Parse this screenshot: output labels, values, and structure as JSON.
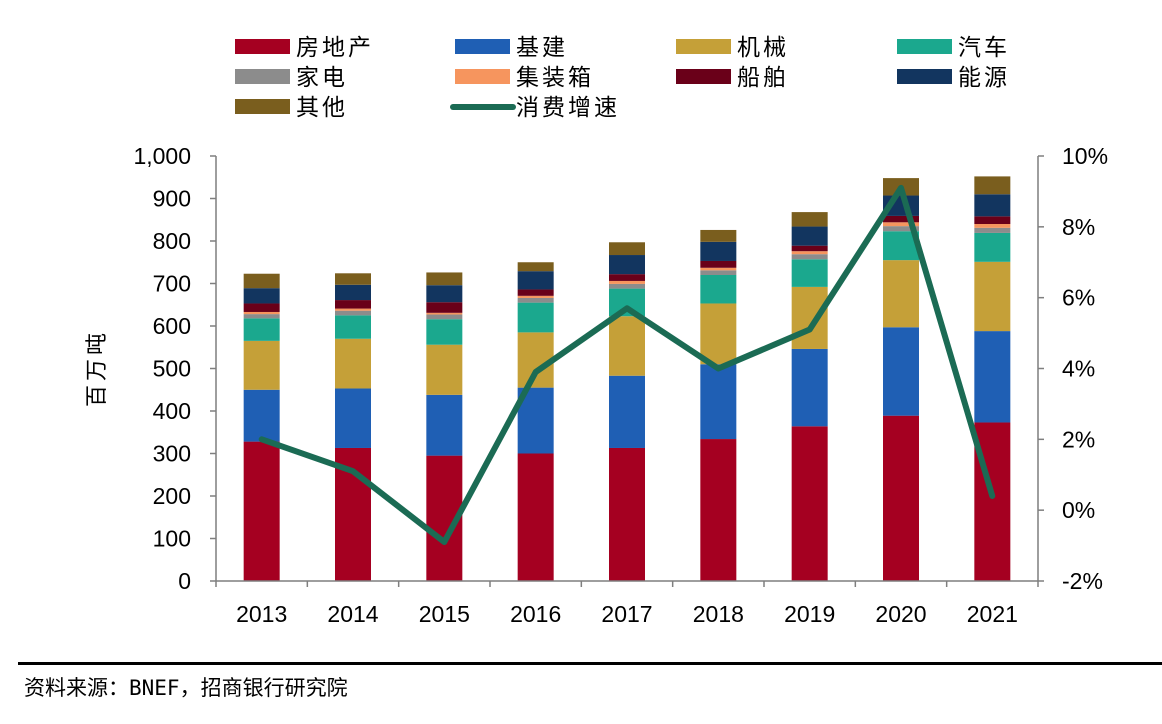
{
  "chart_data": {
    "type": "bar",
    "stacked": true,
    "categories": [
      "2013",
      "2014",
      "2015",
      "2016",
      "2017",
      "2018",
      "2019",
      "2020",
      "2021"
    ],
    "ylabel": "百万吨",
    "ylim": [
      0,
      1000
    ],
    "y_ticks": [
      "0",
      "100",
      "200",
      "300",
      "400",
      "500",
      "600",
      "700",
      "800",
      "900",
      "1,000"
    ],
    "y2lim": [
      -2,
      10
    ],
    "y2_ticks": [
      "-2%",
      "0%",
      "2%",
      "4%",
      "6%",
      "8%",
      "10%"
    ],
    "grid": false,
    "legend_position": "top",
    "series": [
      {
        "name": "房地产",
        "color": "#A50021",
        "values": [
          328,
          313,
          295,
          300,
          313,
          334,
          364,
          389,
          373
        ]
      },
      {
        "name": "基建",
        "color": "#1F5FB4",
        "values": [
          122,
          140,
          143,
          155,
          170,
          176,
          182,
          208,
          215
        ]
      },
      {
        "name": "机械",
        "color": "#C5A038",
        "values": [
          115,
          117,
          118,
          130,
          140,
          143,
          146,
          158,
          163
        ]
      },
      {
        "name": "汽车",
        "color": "#1BA88E",
        "values": [
          53,
          55,
          60,
          70,
          65,
          67,
          65,
          68,
          68
        ]
      },
      {
        "name": "家电",
        "color": "#8C8C8C",
        "values": [
          10,
          11,
          11,
          11,
          11,
          11,
          12,
          12,
          12
        ]
      },
      {
        "name": "集装箱",
        "color": "#F6955E",
        "values": [
          5,
          5,
          4,
          5,
          7,
          6,
          7,
          9,
          9
        ]
      },
      {
        "name": "船舶",
        "color": "#6A0019",
        "values": [
          20,
          20,
          25,
          15,
          16,
          16,
          13,
          15,
          18
        ]
      },
      {
        "name": "能源",
        "color": "#12355F",
        "values": [
          36,
          36,
          40,
          43,
          45,
          45,
          45,
          48,
          52
        ]
      },
      {
        "name": "其他",
        "color": "#7A5E1E",
        "values": [
          34,
          27,
          30,
          21,
          30,
          28,
          34,
          41,
          42
        ]
      },
      {
        "name": "消费增速",
        "type": "line",
        "axis": "right",
        "color": "#1B6B54",
        "values": [
          2.0,
          1.1,
          -0.9,
          3.9,
          5.7,
          4.0,
          5.1,
          9.1,
          0.4
        ]
      }
    ]
  },
  "source": "资料来源：BNEF，招商银行研究院"
}
